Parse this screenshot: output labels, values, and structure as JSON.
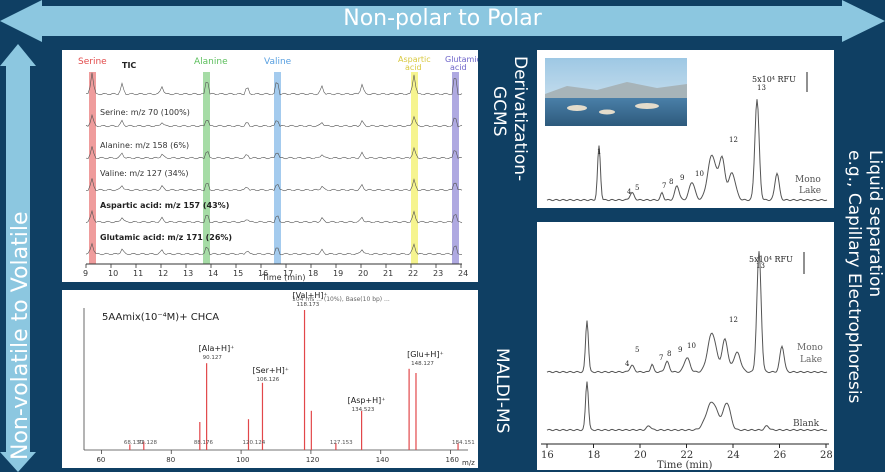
{
  "arrows": {
    "top": "Non-polar to Polar",
    "left": "Non-volatile to Volatile"
  },
  "sections": {
    "gcms": "Derivatization-\nGCMS",
    "maldi": "MALDI-MS",
    "ce": "Liquid separation\ne.g., Capillary Electrophoresis"
  },
  "gcms_panel": {
    "tic_label": "TIC",
    "amino_labels": [
      "Serine",
      "Alanine",
      "Valine",
      "Aspartic\nacid",
      "Glutamic\nacid"
    ],
    "amino_colors": [
      "#e24b4b",
      "#5cbf5c",
      "#5aa0e0",
      "#f3f06a",
      "#6d63c9"
    ],
    "traces": [
      "Serine: m/z 70 (100%)",
      "Alanine: m/z 158 (6%)",
      "Valine: m/z 127 (34%)",
      "Aspartic acid: m/z 157 (43%)",
      "Glutamic acid: m/z 171 (26%)"
    ],
    "x_ticks": [
      "9",
      "10",
      "11",
      "12",
      "13",
      "14",
      "15",
      "16",
      "17",
      "18",
      "19",
      "20",
      "21",
      "22",
      "23",
      "24"
    ],
    "xlabel": "Time (min)"
  },
  "maldi_panel": {
    "title": "5AAmix(10⁻⁴M)+ CHCA",
    "header_note": "104 ms ... (10%), Base(10 bp) ... ",
    "peaks": [
      {
        "label": "[Ala+H]⁺",
        "mz": "90.127"
      },
      {
        "label": "[Ser+H]⁺",
        "mz": "106.126"
      },
      {
        "label": "[Val+H]⁺",
        "mz": "118.173"
      },
      {
        "label": "[Asp+H]⁺",
        "mz": "134.523"
      },
      {
        "label": "[Glu+H]⁺",
        "mz": "148.127"
      }
    ],
    "minor_labels": [
      "68.130",
      "72.128",
      "88.176",
      "120.124",
      "127.153",
      "184.151"
    ],
    "x_ticks": [
      "60",
      "80",
      "100",
      "120",
      "140",
      "160"
    ],
    "xlabel": "m/z"
  },
  "ce_top": {
    "scale": "5x10⁴ RFU",
    "sample": "Mono\nLake",
    "peak_labels": [
      "13",
      "12",
      "10",
      "9",
      "8",
      "7",
      "5",
      "4",
      "1"
    ]
  },
  "ce_bottom": {
    "scale": "5x10⁴ RFU",
    "sample_mono": "Mono\nLake",
    "sample_blank": "Blank",
    "peak_labels": [
      "13",
      "12",
      "10",
      "9",
      "8",
      "7",
      "5",
      "4"
    ],
    "x_ticks": [
      "16",
      "18",
      "20",
      "22",
      "24",
      "26",
      "28"
    ],
    "xlabel": "Time (min)"
  },
  "colors": {
    "background": "#0f3f63",
    "arrow": "#7fc6e6",
    "accent": "#2a6f8f"
  }
}
